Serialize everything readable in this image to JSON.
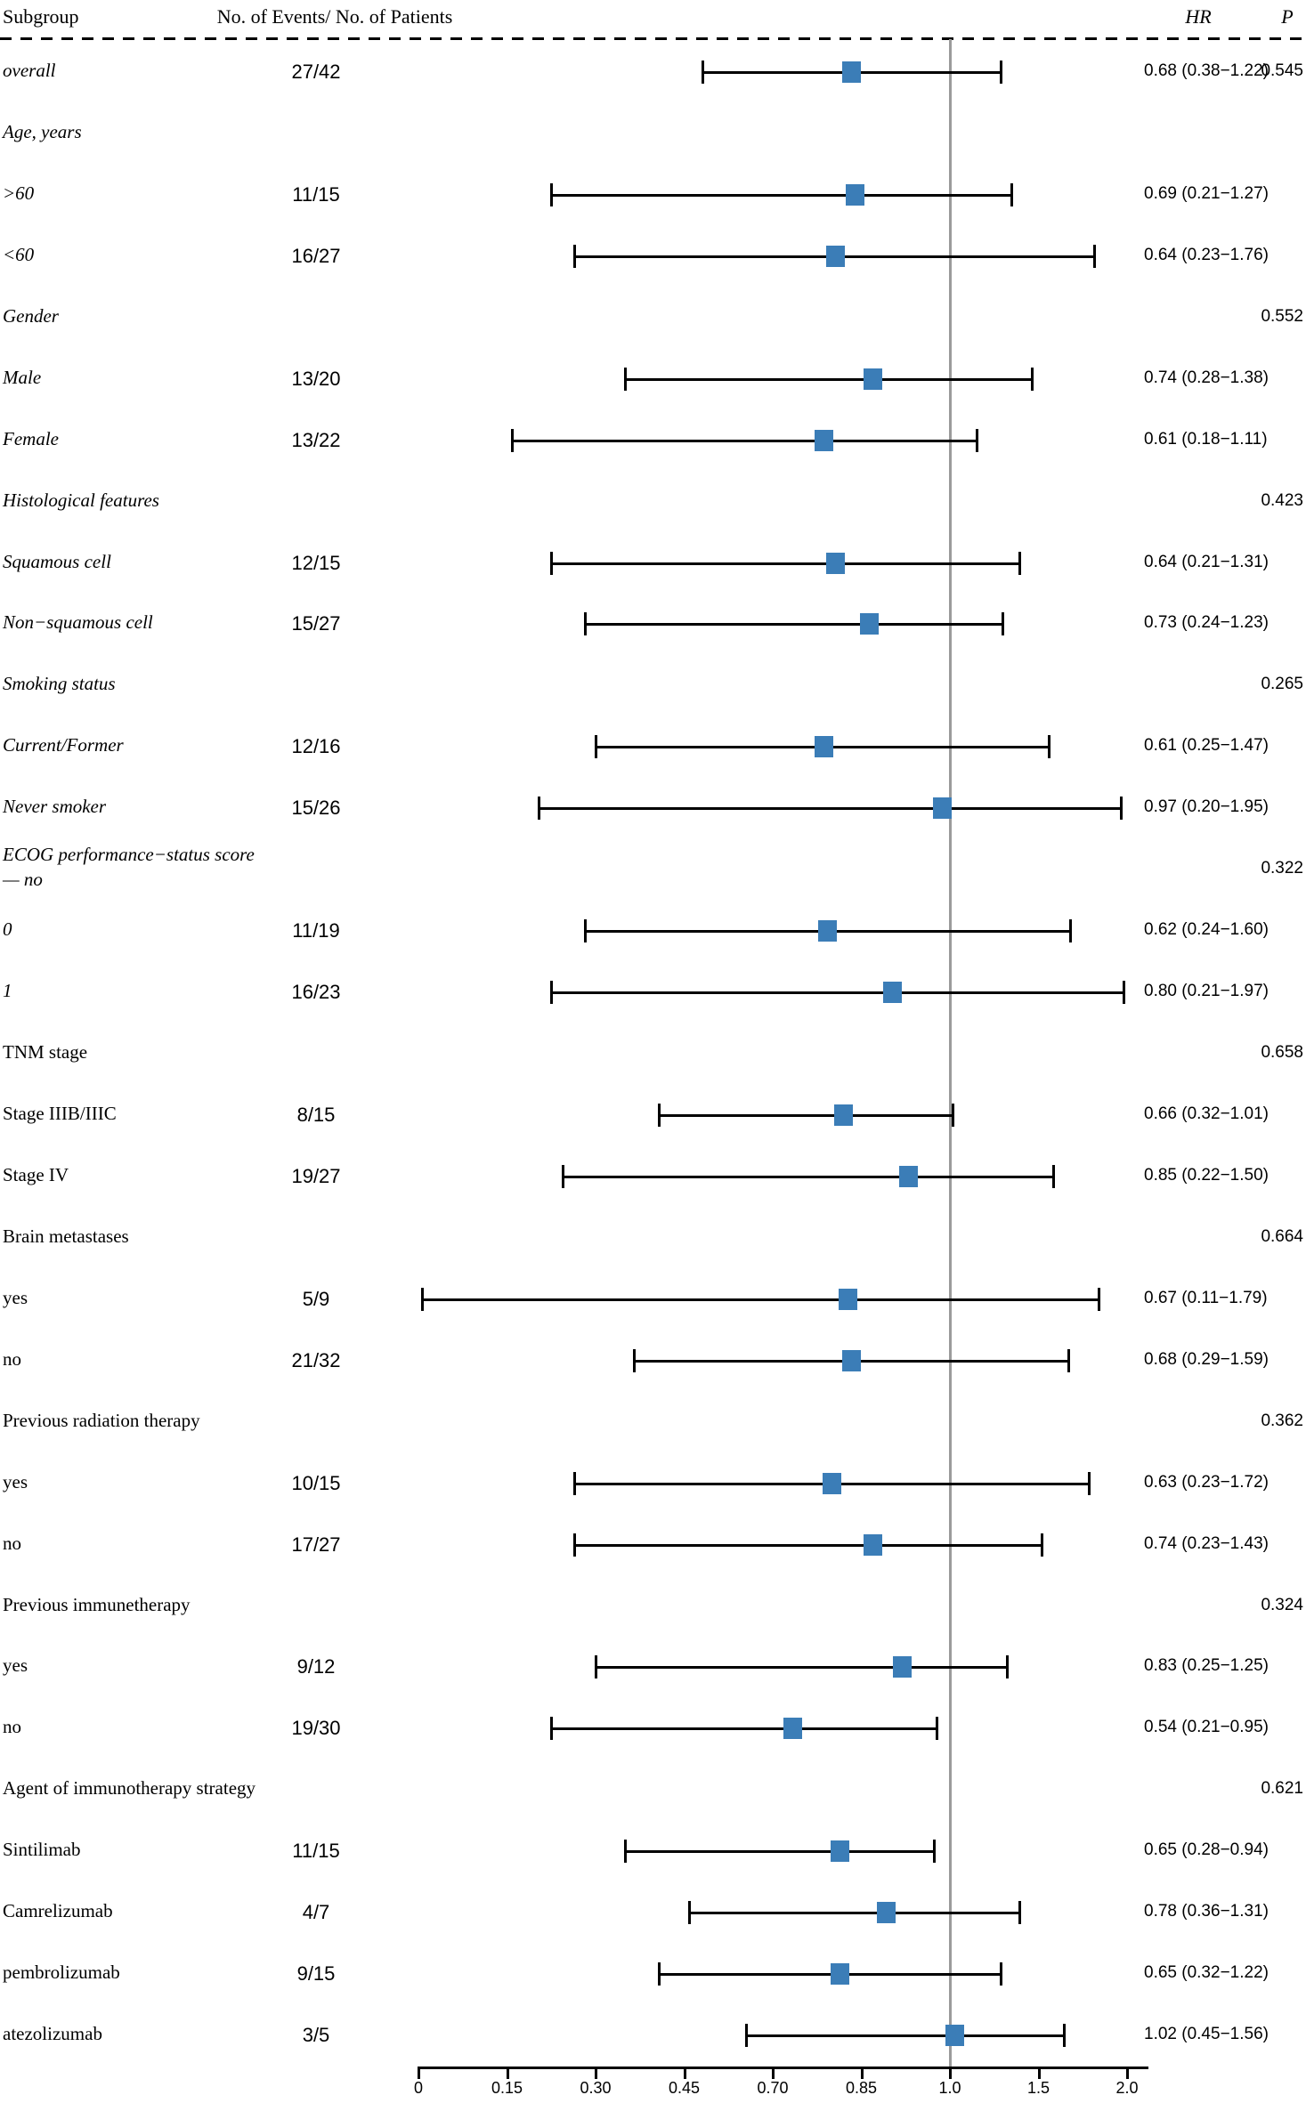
{
  "header": {
    "subgroup": "Subgroup",
    "events": "No. of Events/ No. of Patients",
    "hr": "HR",
    "p": "P"
  },
  "colors": {
    "marker_blue": "#3b7db7",
    "ci_black": "#000000",
    "reference_gray": "#9b9b9b"
  },
  "chart_data": {
    "type": "scatter",
    "subtype": "forest-plot",
    "title": "",
    "xlabel": "",
    "ylabel": "",
    "x_axis": {
      "tick_labels": [
        "0",
        "0.15",
        "0.30",
        "0.45",
        "0.70",
        "0.85",
        "1.0",
        "1.5",
        "2.0"
      ],
      "scale": "log2-spaced ticks, evenly drawn",
      "reference_value": 1.0
    },
    "legend": [],
    "rows": [
      {
        "kind": "data",
        "label": "overall",
        "italic": true,
        "events": "27/42",
        "hr": 0.68,
        "ci": [
          0.38,
          1.22
        ],
        "hr_text": "0.68 (0.38−1.22)",
        "p": "0.545"
      },
      {
        "kind": "section",
        "label": "Age, years",
        "italic": true,
        "p": ""
      },
      {
        "kind": "data",
        "label": ">60",
        "italic": true,
        "events": "11/15",
        "hr": 0.69,
        "ci": [
          0.21,
          1.27
        ],
        "hr_text": "0.69 (0.21−1.27)",
        "p": ""
      },
      {
        "kind": "data",
        "label": "<60",
        "italic": true,
        "events": "16/27",
        "hr": 0.64,
        "ci": [
          0.23,
          1.76
        ],
        "hr_text": "0.64 (0.23−1.76)",
        "p": ""
      },
      {
        "kind": "section",
        "label": "Gender",
        "italic": true,
        "p": "0.552"
      },
      {
        "kind": "data",
        "label": "Male",
        "italic": true,
        "events": "13/20",
        "hr": 0.74,
        "ci": [
          0.28,
          1.38
        ],
        "hr_text": "0.74 (0.28−1.38)",
        "p": ""
      },
      {
        "kind": "data",
        "label": "Female",
        "italic": true,
        "events": "13/22",
        "hr": 0.61,
        "ci": [
          0.18,
          1.11
        ],
        "hr_text": "0.61 (0.18−1.11)",
        "p": ""
      },
      {
        "kind": "section",
        "label": "Histological features",
        "italic": true,
        "p": "0.423"
      },
      {
        "kind": "data",
        "label": "Squamous cell",
        "italic": true,
        "events": "12/15",
        "hr": 0.64,
        "ci": [
          0.21,
          1.31
        ],
        "hr_text": "0.64 (0.21−1.31)",
        "p": ""
      },
      {
        "kind": "data",
        "label": "Non−squamous cell",
        "italic": true,
        "events": "15/27",
        "hr": 0.73,
        "ci": [
          0.24,
          1.23
        ],
        "hr_text": "0.73 (0.24−1.23)",
        "p": ""
      },
      {
        "kind": "section",
        "label": "Smoking status",
        "italic": true,
        "p": "0.265"
      },
      {
        "kind": "data",
        "label": "Current/Former",
        "italic": true,
        "events": "12/16",
        "hr": 0.61,
        "ci": [
          0.25,
          1.47
        ],
        "hr_text": "0.61 (0.25−1.47)",
        "p": ""
      },
      {
        "kind": "data",
        "label": "Never smoker",
        "italic": true,
        "events": "15/26",
        "hr": 0.97,
        "ci": [
          0.2,
          1.95
        ],
        "hr_text": "0.97 (0.20−1.95)",
        "p": ""
      },
      {
        "kind": "section",
        "label": "ECOG performance−status score",
        "label2": "— no",
        "italic": true,
        "p": "0.322"
      },
      {
        "kind": "data",
        "label": "0",
        "italic": true,
        "events": "11/19",
        "hr": 0.62,
        "ci": [
          0.24,
          1.6
        ],
        "hr_text": "0.62 (0.24−1.60)",
        "p": ""
      },
      {
        "kind": "data",
        "label": "1",
        "italic": true,
        "events": "16/23",
        "hr": 0.8,
        "ci": [
          0.21,
          1.97
        ],
        "hr_text": "0.80 (0.21−1.97)",
        "p": ""
      },
      {
        "kind": "section",
        "label": "TNM stage",
        "italic": false,
        "p": "0.658"
      },
      {
        "kind": "data",
        "label": "Stage IIIB/IIIC",
        "italic": false,
        "events": "8/15",
        "hr": 0.66,
        "ci": [
          0.32,
          1.01
        ],
        "hr_text": "0.66 (0.32−1.01)",
        "p": ""
      },
      {
        "kind": "data",
        "label": "Stage IV",
        "italic": false,
        "events": "19/27",
        "hr": 0.85,
        "ci": [
          0.22,
          1.5
        ],
        "hr_text": "0.85 (0.22−1.50)",
        "p": ""
      },
      {
        "kind": "section",
        "label": "Brain metastases",
        "italic": false,
        "p": "0.664"
      },
      {
        "kind": "data",
        "label": "yes",
        "italic": false,
        "events": "5/9",
        "hr": 0.67,
        "ci": [
          0.11,
          1.79
        ],
        "hr_text": "0.67 (0.11−1.79)",
        "p": ""
      },
      {
        "kind": "data",
        "label": "no",
        "italic": false,
        "events": "21/32",
        "hr": 0.68,
        "ci": [
          0.29,
          1.59
        ],
        "hr_text": "0.68 (0.29−1.59)",
        "p": ""
      },
      {
        "kind": "section",
        "label": "Previous radiation therapy",
        "italic": false,
        "p": "0.362"
      },
      {
        "kind": "data",
        "label": "yes",
        "italic": false,
        "events": "10/15",
        "hr": 0.63,
        "ci": [
          0.23,
          1.72
        ],
        "hr_text": "0.63 (0.23−1.72)",
        "p": ""
      },
      {
        "kind": "data",
        "label": "no",
        "italic": false,
        "events": "17/27",
        "hr": 0.74,
        "ci": [
          0.23,
          1.43
        ],
        "hr_text": "0.74 (0.23−1.43)",
        "p": ""
      },
      {
        "kind": "section",
        "label": "Previous immunetherapy",
        "italic": false,
        "p": "0.324"
      },
      {
        "kind": "data",
        "label": "yes",
        "italic": false,
        "events": "9/12",
        "hr": 0.83,
        "ci": [
          0.25,
          1.25
        ],
        "hr_text": "0.83 (0.25−1.25)",
        "p": ""
      },
      {
        "kind": "data",
        "label": "no",
        "italic": false,
        "events": "19/30",
        "hr": 0.54,
        "ci": [
          0.21,
          0.95
        ],
        "hr_text": "0.54 (0.21−0.95)",
        "p": ""
      },
      {
        "kind": "section",
        "label": "Agent of immunotherapy strategy",
        "italic": false,
        "p": "0.621"
      },
      {
        "kind": "data",
        "label": "Sintilimab",
        "italic": false,
        "events": "11/15",
        "hr": 0.65,
        "ci": [
          0.28,
          0.94
        ],
        "hr_text": "0.65 (0.28−0.94)",
        "p": ""
      },
      {
        "kind": "data",
        "label": "Camrelizumab",
        "italic": false,
        "events": "4/7",
        "hr": 0.78,
        "ci": [
          0.36,
          1.31
        ],
        "hr_text": "0.78 (0.36−1.31)",
        "p": ""
      },
      {
        "kind": "data",
        "label": "pembrolizumab",
        "italic": false,
        "events": "9/15",
        "hr": 0.65,
        "ci": [
          0.32,
          1.22
        ],
        "hr_text": "0.65 (0.32−1.22)",
        "p": ""
      },
      {
        "kind": "data",
        "label": "atezolizumab",
        "italic": false,
        "events": "3/5",
        "hr": 1.02,
        "ci": [
          0.45,
          1.56
        ],
        "hr_text": "1.02 (0.45−1.56)",
        "p": ""
      }
    ]
  }
}
